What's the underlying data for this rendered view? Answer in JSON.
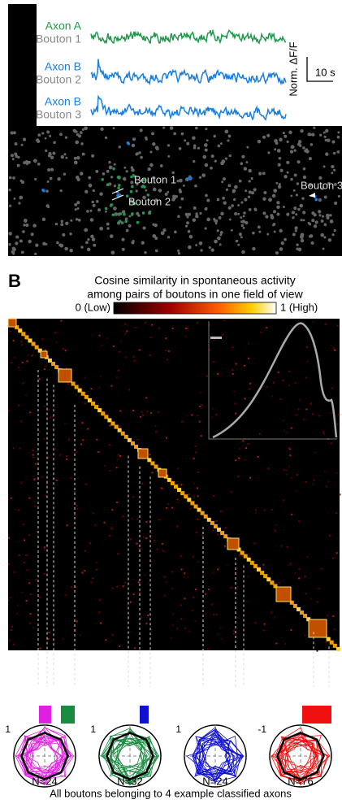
{
  "panel_a": {
    "traces": [
      {
        "axon": "Axon A",
        "bouton": "Bouton 1",
        "color": "#1f9a4a"
      },
      {
        "axon": "Axon B",
        "bouton": "Bouton 2",
        "color": "#1a7fe0"
      },
      {
        "axon": "Axon B",
        "bouton": "Bouton 3",
        "color": "#1a7fe0"
      }
    ],
    "y_label": "Norm. ΔF/F",
    "scale_label": "10 s",
    "annotations": [
      "Bouton 1",
      "Bouton 2",
      "Bouton 3"
    ]
  },
  "panel_b": {
    "letter": "B",
    "title": "Cosine similarity in spontaneous activity",
    "subtitle": "among pairs of boutons in one field of view",
    "colorbar_min": "0 (Low)",
    "colorbar_max": "1 (High)"
  },
  "polar_plots": [
    {
      "scale_label": "1",
      "n_label": "N=24",
      "color": "#e020e0"
    },
    {
      "scale_label": "1",
      "n_label": "N=32",
      "color": "#1a8a40"
    },
    {
      "scale_label": "1",
      "n_label": "N=24",
      "color": "#1010d0"
    },
    {
      "scale_label": "-1",
      "n_label": "N=76",
      "color": "#f01010"
    }
  ],
  "caption": "All boutons belonging to 4 example classified axons"
}
